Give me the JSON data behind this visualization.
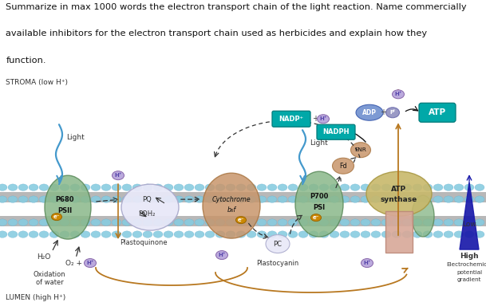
{
  "bg_color": "#ffffff",
  "diagram_bg": "#c5e8f0",
  "text_top_line1": "Summarize in max 1000 words the electron transport chain of the light reaction. Name commercially",
  "text_top_line2": "available inhibitors for the electron transport chain used as herbicides and explain how they",
  "text_top_line3": "function.",
  "stroma_label": "STROMA (low H⁺)",
  "lumen_label": "LUMEN (high H⁺)",
  "psii_color": "#8ab88a",
  "psii_edge": "#5a8a5a",
  "cyt_color": "#c8956b",
  "cyt_edge": "#aa7744",
  "psi_color": "#8ab88a",
  "psi_edge": "#5a8a5a",
  "atp_top_color": "#c8b86b",
  "atp_top_edge": "#aa9944",
  "atp_bot_color": "#d8a898",
  "atp_bot_edge": "#bb8878",
  "atp_right_color": "#8ab88a",
  "atp_right_edge": "#5a8a5a",
  "pq_color": "#e8e8f8",
  "pq_edge": "#aaaacc",
  "pc_color": "#e8e8f8",
  "pc_edge": "#aaaacc",
  "fd_color": "#c8956b",
  "fnr_color": "#c8956b",
  "mem_ball_color": "#88cce0",
  "mem_gray": "#b8b8b8",
  "nadp_color": "#00a8a8",
  "atp_box_color": "#00a8a8",
  "adp_color": "#6688cc",
  "pi_color": "#8888bb",
  "hplus_fill": "#bbaadd",
  "hplus_edge": "#8866aa",
  "hplus_text": "#5544aa",
  "eminus_fill": "#cc8800",
  "orange_arrow": "#b87820",
  "blue_light": "#4499cc",
  "dashed_col": "#333333",
  "black_arrow": "#111111",
  "blue_tri": "#1a1aaa",
  "light_text": "#333333"
}
